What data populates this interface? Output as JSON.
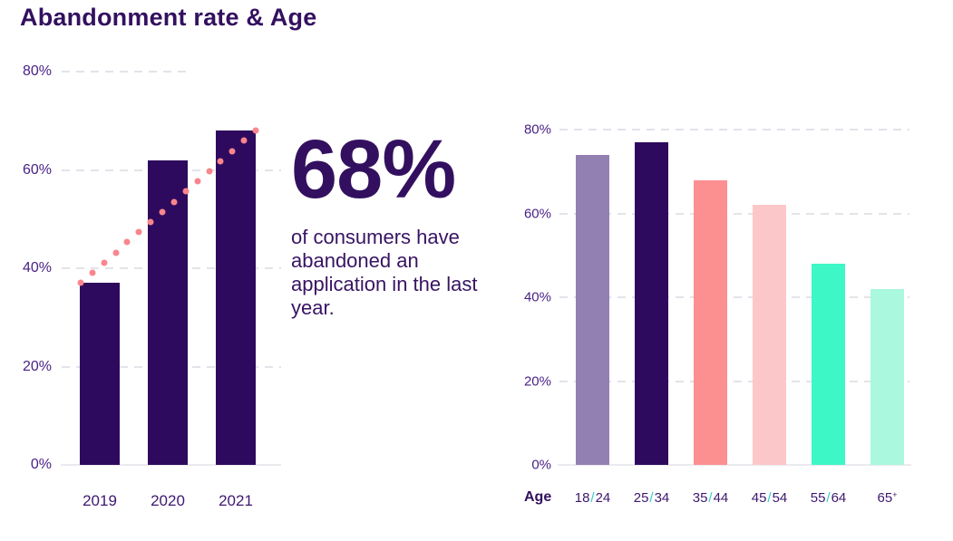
{
  "page": {
    "title": "Abandonment rate & Age"
  },
  "callout": {
    "stat": "68%",
    "description": "of consumers have abandoned an application in the last year."
  },
  "colors": {
    "background": "#ffffff",
    "title_text": "#33105f",
    "dark_purple_bar": "#2e0a5e",
    "ytick_label": "#481f85",
    "xtick_label": "#3e176e",
    "slash_accent": "#2fcbcd",
    "trend_dot": "#f9858d",
    "gridline": "#e3e3ea",
    "baseline": "#eaeaef"
  },
  "chart_data": [
    {
      "type": "bar",
      "name": "abandonment-rate-by-year",
      "categories": [
        "2019",
        "2020",
        "2021"
      ],
      "values": [
        37,
        62,
        68
      ],
      "bar_color": "#2e0a5e",
      "ylim": [
        0,
        80
      ],
      "yticks": [
        80,
        60,
        40,
        20,
        0
      ],
      "ytick_suffix": "%",
      "grid": "dashed-horizontal",
      "legend": "none",
      "trendline": {
        "style": "dotted",
        "color": "#f9858d",
        "dots": 16,
        "from_value": 37,
        "to_value": 68
      }
    },
    {
      "type": "bar",
      "name": "abandonment-rate-by-age",
      "xlabel": "Age",
      "categories": [
        "18/24",
        "25/34",
        "35/44",
        "45/54",
        "55/64",
        "65+"
      ],
      "values": [
        74,
        77,
        68,
        62,
        48,
        42
      ],
      "bar_colors": [
        "#9380b2",
        "#2e0a5e",
        "#fc8f90",
        "#fcc7c9",
        "#3ef7c6",
        "#aaf8de"
      ],
      "ylim": [
        0,
        80
      ],
      "yticks": [
        80,
        60,
        40,
        20,
        0
      ],
      "ytick_suffix": "%",
      "grid": "dashed-horizontal",
      "legend": "none"
    }
  ]
}
